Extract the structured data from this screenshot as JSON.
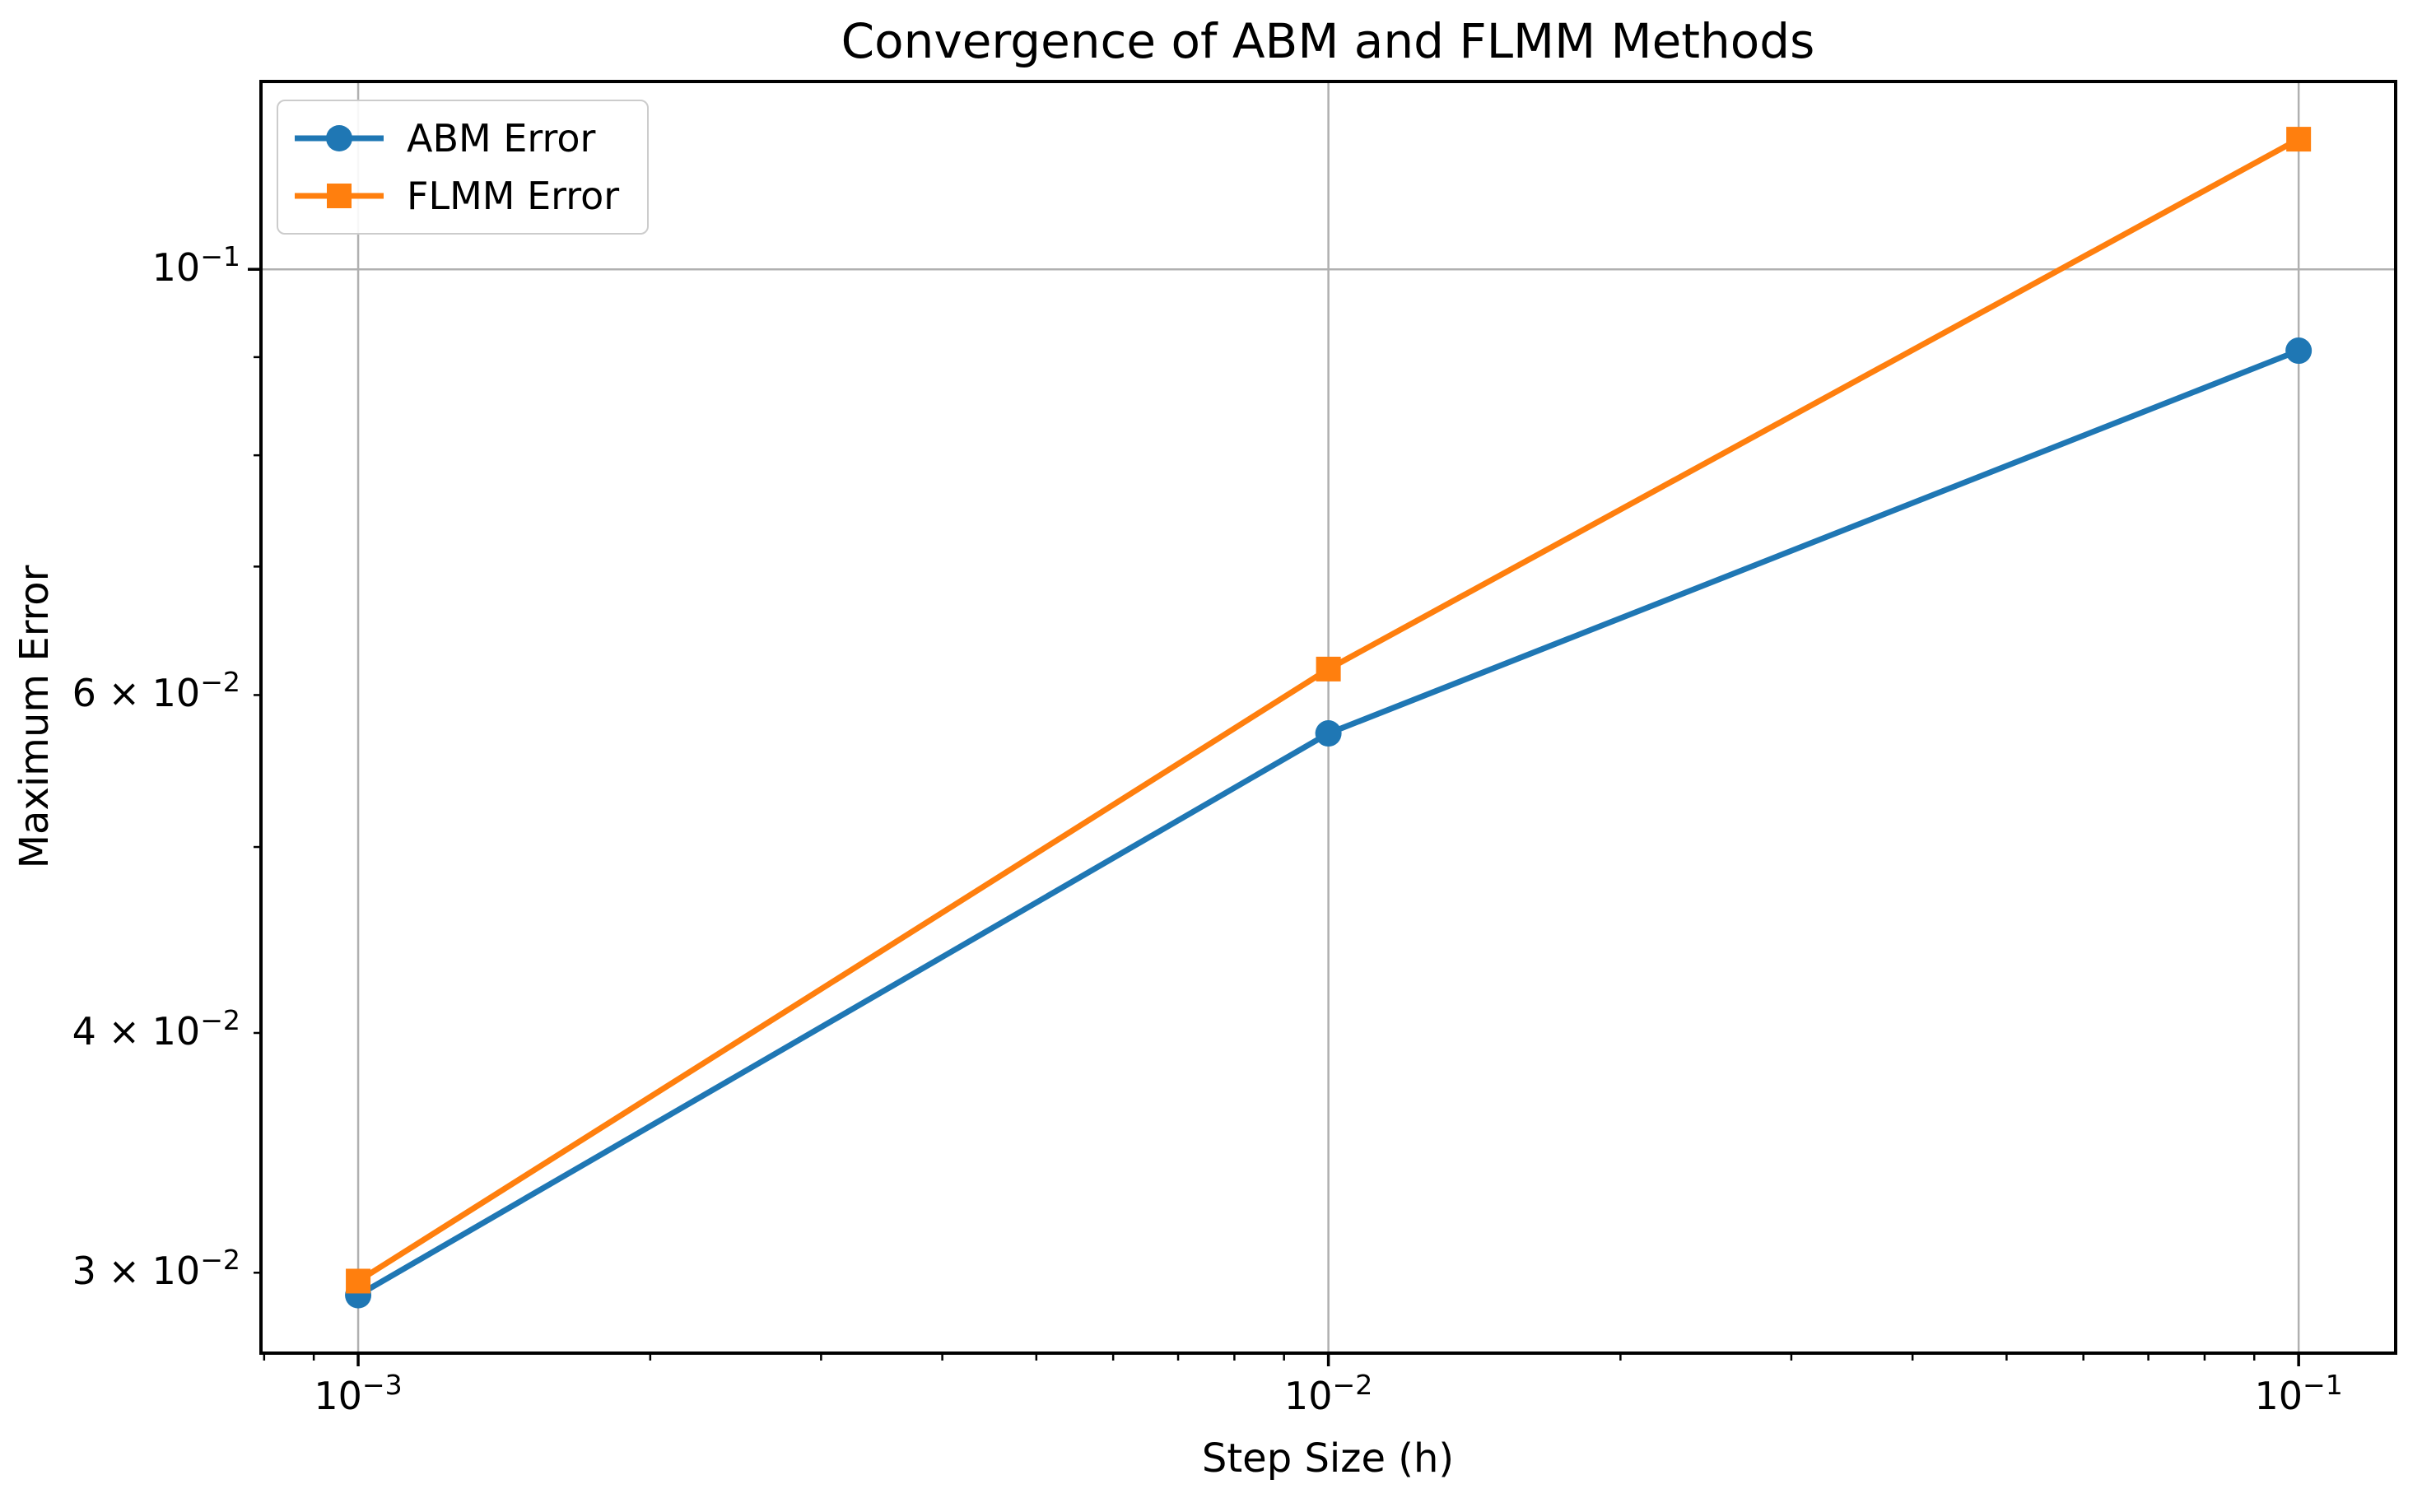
{
  "figure": {
    "background": "#ffffff"
  },
  "chart_data": {
    "type": "line",
    "title": "Convergence of ABM and FLMM Methods",
    "xlabel": "Step Size (h)",
    "ylabel": "Maximum Error",
    "xscale": "log",
    "yscale": "log",
    "x": [
      0.001,
      0.01,
      0.1
    ],
    "series": [
      {
        "name": "ABM Error",
        "color": "#1f77b4",
        "marker": "circle",
        "values": [
          0.0292,
          0.0573,
          0.0907
        ]
      },
      {
        "name": "FLMM Error",
        "color": "#ff7f0e",
        "marker": "square",
        "values": [
          0.0297,
          0.0619,
          0.1169
        ]
      }
    ],
    "xlim": [
      0.000794,
      0.12589
    ],
    "ylim": [
      0.02724,
      0.12528
    ],
    "xticks": [
      {
        "value": 0.001,
        "label": "10^-3",
        "major": true
      },
      {
        "value": 0.01,
        "label": "10^-2",
        "major": true
      },
      {
        "value": 0.1,
        "label": "10^-1",
        "major": true
      }
    ],
    "yticks": [
      {
        "value": 0.1,
        "label": "10^-1",
        "major": true
      },
      {
        "value": 0.06,
        "label": "6 × 10^-2",
        "major": false
      },
      {
        "value": 0.04,
        "label": "4 × 10^-2",
        "major": false
      },
      {
        "value": 0.03,
        "label": "3 × 10^-2",
        "major": false
      }
    ],
    "x_minor_ticks": [
      0.0008,
      0.0009,
      0.002,
      0.003,
      0.004,
      0.005,
      0.006,
      0.007,
      0.008,
      0.009,
      0.02,
      0.03,
      0.04,
      0.05,
      0.06,
      0.07,
      0.08,
      0.09
    ],
    "y_minor_ticks": [
      0.09,
      0.08,
      0.07,
      0.05
    ],
    "grid": {
      "show": true,
      "color": "#b0b0b0",
      "x_values": [
        0.001,
        0.01,
        0.1
      ],
      "y_values": [
        0.1
      ]
    },
    "legend": {
      "location": "upper left"
    },
    "axis_color": "#000000",
    "text_color": "#000000",
    "line_width": 7
  }
}
